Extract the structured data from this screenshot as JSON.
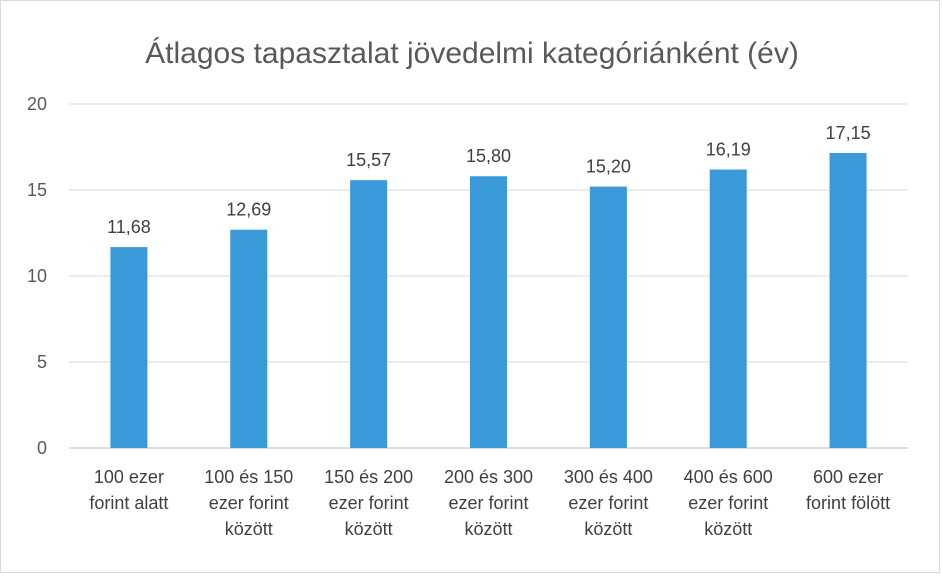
{
  "chart_data": {
    "type": "bar",
    "title": "Átlagos tapasztalat jövedelmi kategóriánként (év)",
    "categories": [
      [
        "100 ezer",
        "forint alatt"
      ],
      [
        "100 és 150",
        "ezer forint",
        "között"
      ],
      [
        "150 és 200",
        "ezer forint",
        "között"
      ],
      [
        "200 és 300",
        "ezer forint",
        "között"
      ],
      [
        "300 és 400",
        "ezer forint",
        "között"
      ],
      [
        "400 és 600",
        "ezer forint",
        "között"
      ],
      [
        "600 ezer",
        "forint fölött"
      ]
    ],
    "values": [
      11.68,
      12.69,
      15.57,
      15.8,
      15.2,
      16.19,
      17.15
    ],
    "value_labels": [
      "11,68",
      "12,69",
      "15,57",
      "15,80",
      "15,20",
      "16,19",
      "17,15"
    ],
    "ylim": [
      0,
      20
    ],
    "yticks": [
      0,
      5,
      10,
      15,
      20
    ],
    "grid": true,
    "bar_color": "#3a9ad9",
    "xlabel": "",
    "ylabel": ""
  }
}
